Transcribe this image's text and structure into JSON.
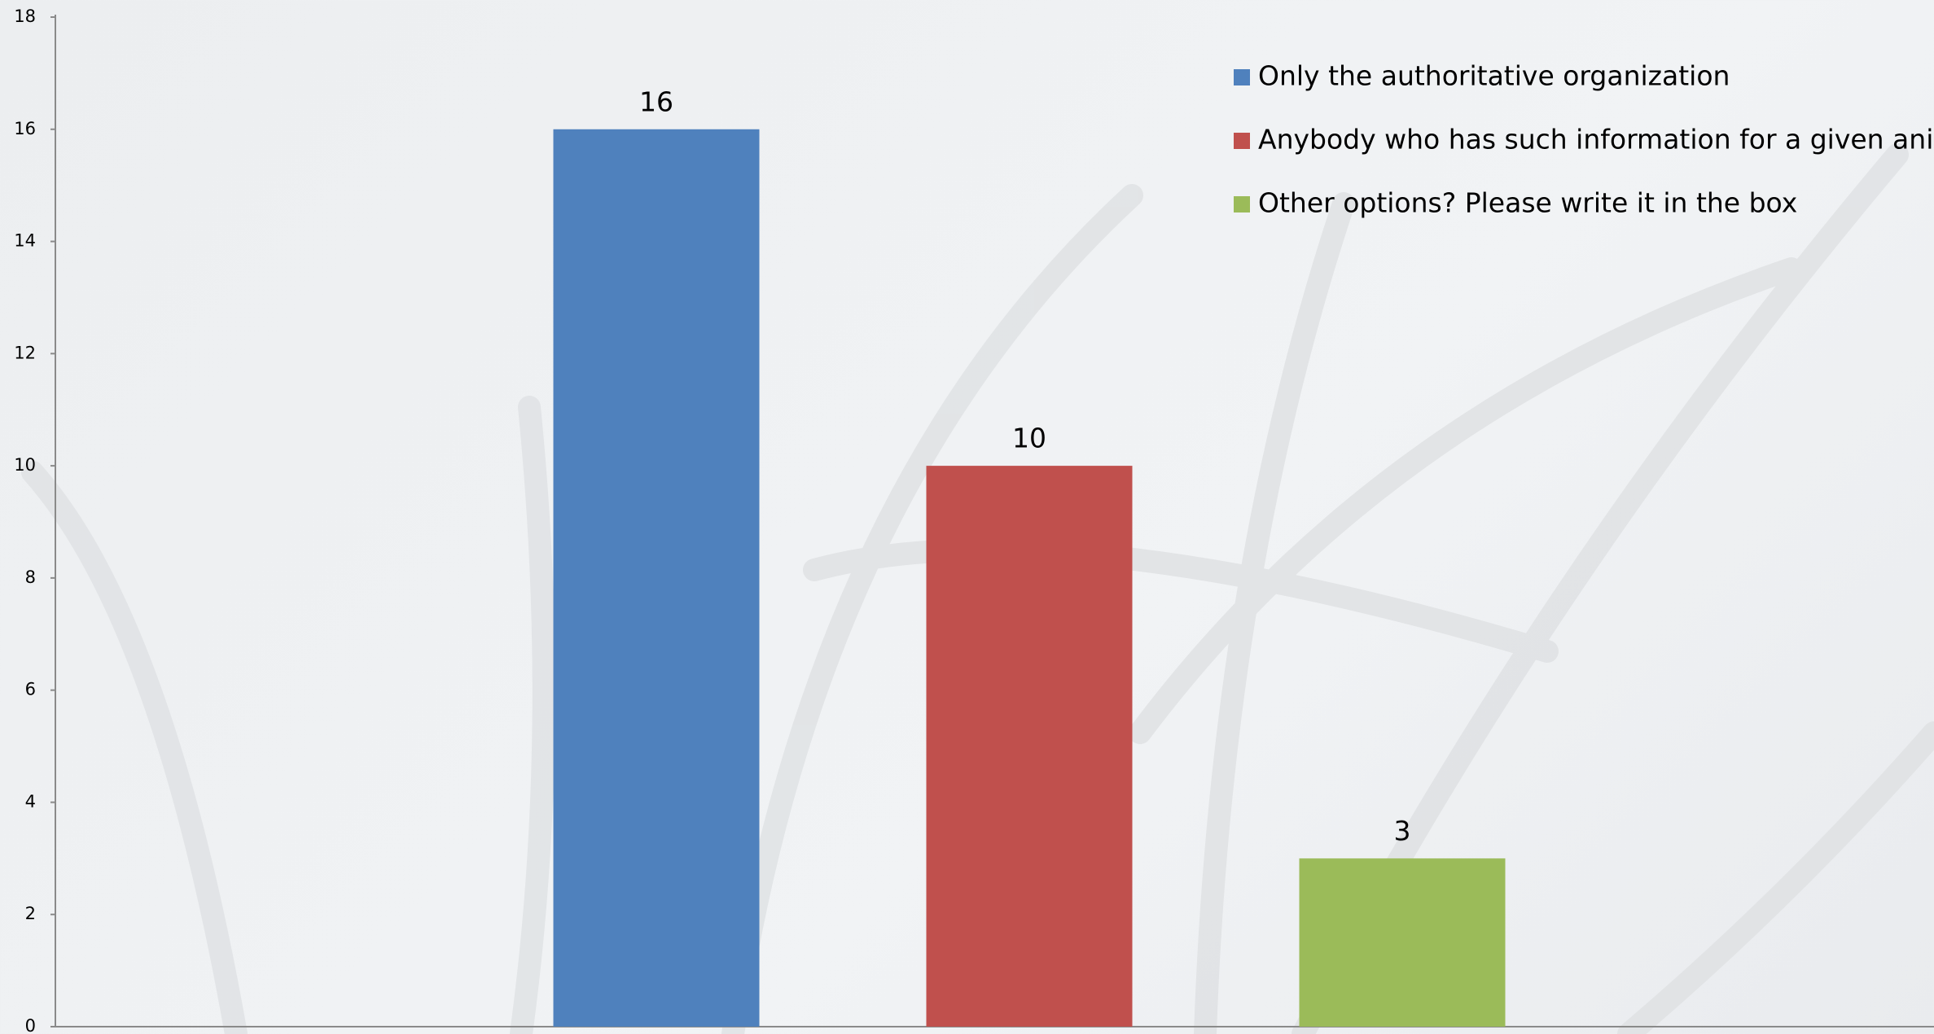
{
  "chart_data": {
    "type": "bar",
    "categories": [
      null
    ],
    "series": [
      {
        "name": "Only the authoritative organization",
        "color": "#4f81bd",
        "values": [
          16
        ]
      },
      {
        "name": "Anybody who has such information for a given animal",
        "color": "#c0504d",
        "values": [
          10
        ]
      },
      {
        "name": "Other options? Please write it in the box",
        "color": "#9bbb59",
        "values": [
          3
        ]
      }
    ],
    "ylim": [
      0,
      18
    ],
    "yticks": [
      0,
      2,
      4,
      6,
      8,
      10,
      12,
      14,
      16,
      18
    ],
    "grid": false,
    "legend": "upper right",
    "data_labels": true
  }
}
